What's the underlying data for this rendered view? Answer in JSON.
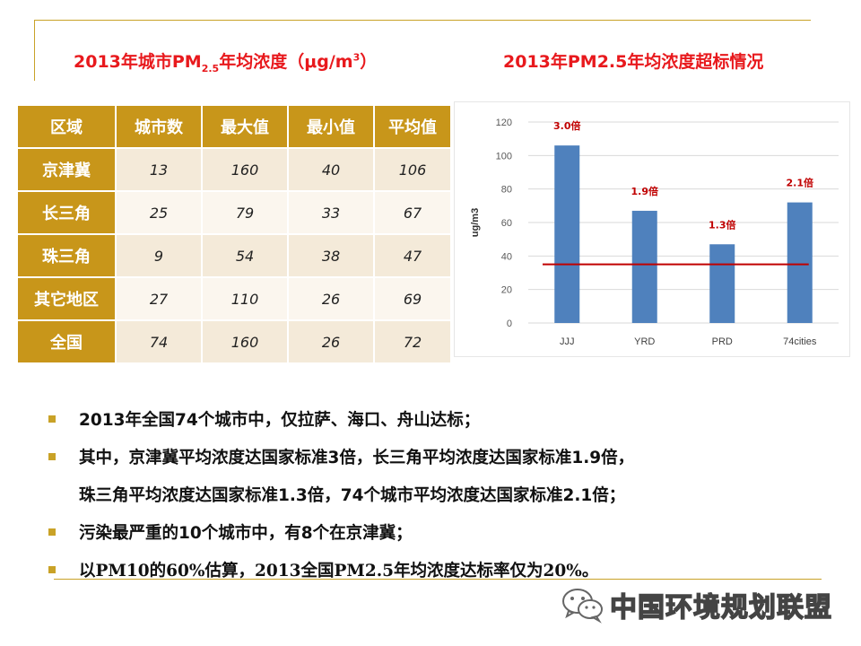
{
  "titles": {
    "left_prefix": "2013年城市PM",
    "left_sub": "2.5",
    "left_mid": "年均浓度（",
    "left_unit": "μg/m",
    "left_sup": "3",
    "left_suffix": "）",
    "right": "2013年PM2.5年均浓度超标情况"
  },
  "table": {
    "headers": [
      "区域",
      "城市数",
      "最大值",
      "最小值",
      "平均值"
    ],
    "rows": [
      {
        "region": "京津冀",
        "cities": "13",
        "max": "160",
        "min": "40",
        "avg": "106"
      },
      {
        "region": "长三角",
        "cities": "25",
        "max": "79",
        "min": "33",
        "avg": "67"
      },
      {
        "region": "珠三角",
        "cities": "9",
        "max": "54",
        "min": "38",
        "avg": "47"
      },
      {
        "region": "其它地区",
        "cities": "27",
        "max": "110",
        "min": "26",
        "avg": "69"
      },
      {
        "region": "全国",
        "cities": "74",
        "max": "160",
        "min": "26",
        "avg": "72"
      }
    ]
  },
  "chart_data": {
    "type": "bar",
    "categories": [
      "JJJ",
      "YRD",
      "PRD",
      "74cities"
    ],
    "values": [
      106,
      67,
      47,
      72
    ],
    "data_labels": [
      "3.0倍",
      "1.9倍",
      "1.3倍",
      "2.1倍"
    ],
    "ylabel": "ug/m3",
    "ylim": [
      0,
      120
    ],
    "yticks": [
      0,
      20,
      40,
      60,
      80,
      100,
      120
    ],
    "reference_line": 35,
    "grid": true,
    "colors": {
      "bar": "#4f81bd",
      "reference": "#c00000",
      "label": "#c00000",
      "grid": "#d9d9d9"
    }
  },
  "bullets": [
    {
      "lines": [
        "2013年全国74个城市中，仅拉萨、海口、舟山达标；"
      ]
    },
    {
      "lines": [
        "其中，京津冀平均浓度达国家标准3倍，长三角平均浓度达国家标准1.9倍，",
        "珠三角平均浓度达国家标准1.3倍，74个城市平均浓度达国家标准2.1倍；"
      ]
    },
    {
      "lines": [
        "污染最严重的10个城市中，有8个在京津冀；"
      ]
    },
    {
      "lines": [
        "以PM10的60%估算，2013全国PM2.5年均浓度达标率仅为20%。"
      ]
    }
  ],
  "watermark": {
    "text": "中国环境规划联盟",
    "icon": "wechat-icon"
  },
  "colors": {
    "accent": "#c9a227",
    "table_header": "#c8961a",
    "title_red": "#e8191d"
  }
}
